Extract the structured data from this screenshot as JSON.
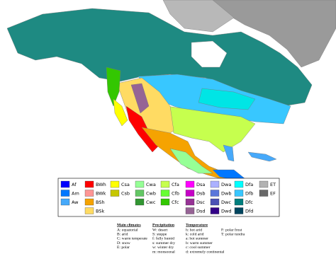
{
  "legend": {
    "columns": [
      [
        {
          "code": "Af",
          "color": "#0000fe"
        },
        {
          "code": "Am",
          "color": "#0077ff"
        },
        {
          "code": "Aw",
          "color": "#46a9fa"
        }
      ],
      [
        {
          "code": "BWh",
          "color": "#fe0000"
        },
        {
          "code": "BWk",
          "color": "#fe9695"
        },
        {
          "code": "BSh",
          "color": "#f5a301"
        },
        {
          "code": "BSk",
          "color": "#ffdb63"
        }
      ],
      [
        {
          "code": "Csa",
          "color": "#ffff00"
        },
        {
          "code": "Csb",
          "color": "#c6c700"
        }
      ],
      [
        {
          "code": "Cwa",
          "color": "#96ff96"
        },
        {
          "code": "Cwb",
          "color": "#63c764"
        },
        {
          "code": "Cwc",
          "color": "#329633"
        }
      ],
      [
        {
          "code": "Cfa",
          "color": "#c6ff4e"
        },
        {
          "code": "Cfb",
          "color": "#66ff33"
        },
        {
          "code": "Cfc",
          "color": "#33c701"
        }
      ],
      [
        {
          "code": "Dsa",
          "color": "#ff00fe"
        },
        {
          "code": "Dsb",
          "color": "#c600c7"
        },
        {
          "code": "Dsc",
          "color": "#963295"
        },
        {
          "code": "Dsd",
          "color": "#966495"
        }
      ],
      [
        {
          "code": "Dwa",
          "color": "#abb1ff"
        },
        {
          "code": "Dwb",
          "color": "#5a77db"
        },
        {
          "code": "Dwc",
          "color": "#4c51b5"
        },
        {
          "code": "Dwd",
          "color": "#320087"
        }
      ],
      [
        {
          "code": "Dfa",
          "color": "#00ffff"
        },
        {
          "code": "Dfb",
          "color": "#38c7ff"
        },
        {
          "code": "Dfc",
          "color": "#007e7d"
        },
        {
          "code": "Dfd",
          "color": "#00455e"
        }
      ],
      [
        {
          "code": "ET",
          "color": "#b2b2b2"
        },
        {
          "code": "EF",
          "color": "#686868"
        }
      ]
    ]
  },
  "key": {
    "main": {
      "title": "Main climates",
      "items": [
        "A: equatorial",
        "B: arid",
        "C: warm temperate",
        "D: snow",
        "E: polar"
      ]
    },
    "precipitation": {
      "title": "Precipitation",
      "items": [
        "W: desert",
        "S: steppe",
        "f: fully humid",
        "s: summer dry",
        "w: winter dry",
        "m: monsoonal"
      ]
    },
    "temperature": {
      "title": "Temperature",
      "columns": [
        [
          "h: hot arid",
          "k: cold arid",
          "a: hot summer",
          "b: warm summer",
          "c: cool summer",
          "d: extremely continental"
        ],
        [
          "F: polar frost",
          "T: polar tundra"
        ]
      ]
    }
  }
}
